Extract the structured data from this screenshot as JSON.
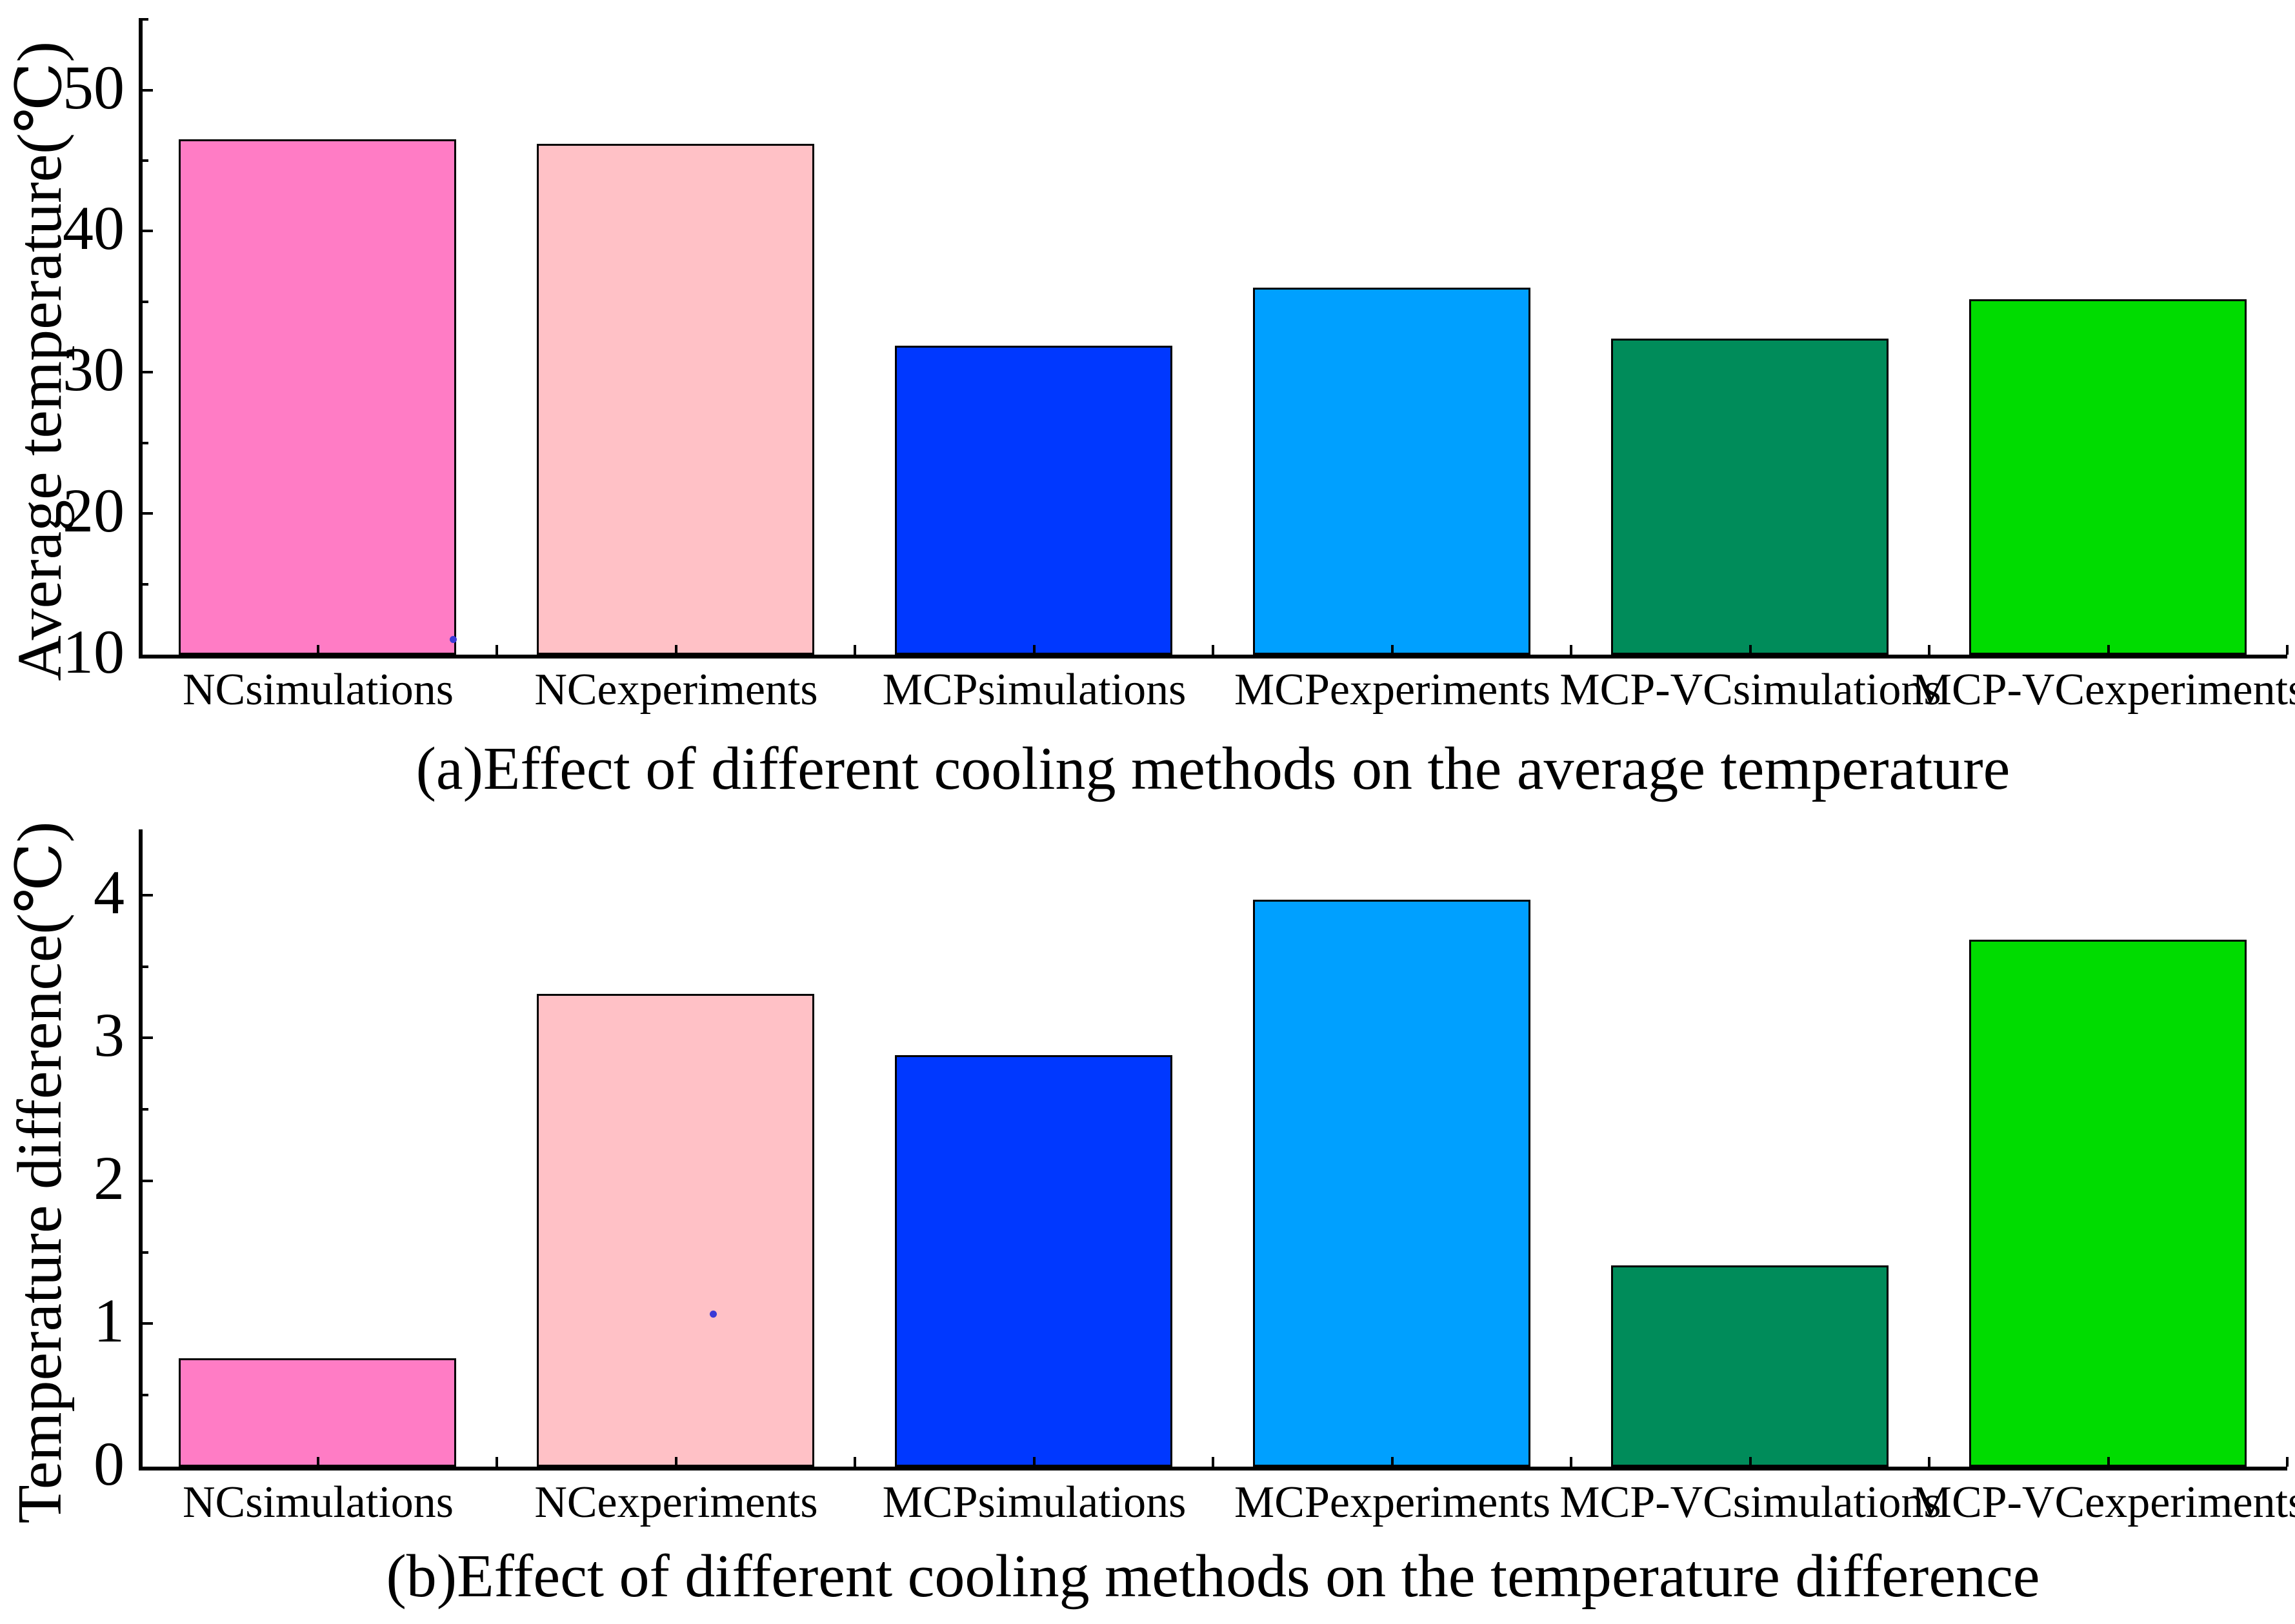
{
  "chart_data": [
    {
      "type": "bar",
      "title": "(a)Effect of different cooling methods on the average temperature",
      "ylabel": "Average temperature(℃)",
      "categories": [
        "NCsimulations",
        "NCexperiments",
        "MCPsimulations",
        "MCPexperiments",
        "MCP-VCsimulations",
        "MCP-VCexperiments"
      ],
      "values": [
        46.5,
        46.2,
        31.9,
        36.0,
        32.4,
        35.2
      ],
      "bar_colors": [
        "#ff7cc5",
        "#ffc1c6",
        "#0038ff",
        "#00a0ff",
        "#008c5a",
        "#00dc00"
      ],
      "bar_edge_color": "#000000",
      "ylim": [
        10,
        55.1
      ],
      "yticks": [
        10,
        20,
        30,
        40,
        50
      ],
      "minor_ytick_step": 5,
      "grid": false,
      "legend_shown": false,
      "stray_dot": {
        "x_frac": 0.1974,
        "value": 11.1,
        "color": "#3a3ad6"
      }
    },
    {
      "type": "bar",
      "title": "(b)Effect of different cooling methods on the temperature difference",
      "ylabel": "Temperature difference(℃)",
      "categories": [
        "NCsimulations",
        "NCexperiments",
        "MCPsimulations",
        "MCPexperiments",
        "MCP-VCsimulations",
        "MCP-VCexperiments"
      ],
      "values": [
        0.76,
        3.31,
        2.88,
        3.97,
        1.41,
        3.69
      ],
      "bar_colors": [
        "#ff7cc5",
        "#ffc1c6",
        "#0038ff",
        "#00a0ff",
        "#008c5a",
        "#00dc00"
      ],
      "bar_edge_color": "#000000",
      "ylim": [
        0,
        4.46
      ],
      "yticks": [
        0,
        1,
        2,
        3,
        4
      ],
      "minor_ytick_step": 0.5,
      "grid": false,
      "legend_shown": false,
      "stray_dot": {
        "x_frac": 0.3107,
        "value": 1.07,
        "color": "#3a3ad6"
      }
    }
  ]
}
